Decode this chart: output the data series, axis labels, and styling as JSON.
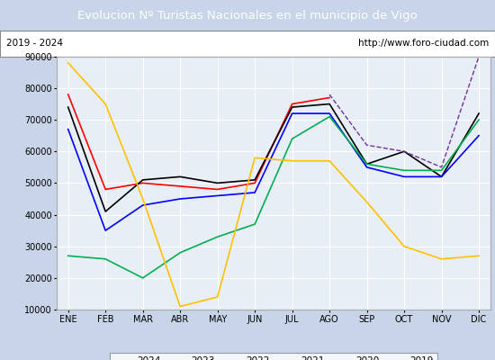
{
  "title": "Evolucion Nº Turistas Nacionales en el municipio de Vigo",
  "subtitle_left": "2019 - 2024",
  "subtitle_right": "http://www.foro-ciudad.com",
  "title_bg_color": "#4472c4",
  "title_text_color": "#ffffff",
  "outer_bg_color": "#c8d4e8",
  "plot_bg_color": "#e8eef5",
  "months": [
    "ENE",
    "FEB",
    "MAR",
    "ABR",
    "MAY",
    "JUN",
    "JUL",
    "AGO",
    "SEP",
    "OCT",
    "NOV",
    "DIC"
  ],
  "ylim": [
    10000,
    90000
  ],
  "yticks": [
    10000,
    20000,
    30000,
    40000,
    50000,
    60000,
    70000,
    80000,
    90000
  ],
  "series": {
    "2024": {
      "color": "#ff0000",
      "data": [
        78000,
        48000,
        50000,
        49000,
        48000,
        50000,
        75000,
        77000,
        null,
        null,
        null,
        null
      ]
    },
    "2023": {
      "color": "#000000",
      "data": [
        74000,
        41000,
        51000,
        52000,
        50000,
        51000,
        74000,
        75000,
        56000,
        60000,
        52000,
        72000
      ]
    },
    "2022": {
      "color": "#0000ff",
      "data": [
        67000,
        35000,
        43000,
        45000,
        46000,
        47000,
        72000,
        72000,
        55000,
        52000,
        52000,
        65000
      ]
    },
    "2021": {
      "color": "#00b050",
      "data": [
        27000,
        26000,
        20000,
        28000,
        33000,
        37000,
        64000,
        71000,
        56000,
        54000,
        54000,
        70000
      ]
    },
    "2020": {
      "color": "#ffc000",
      "data": [
        88000,
        75000,
        45000,
        11000,
        14000,
        58000,
        57000,
        57000,
        44000,
        30000,
        26000,
        27000
      ]
    },
    "2019": {
      "color": "#7030a0",
      "data": [
        null,
        null,
        null,
        null,
        null,
        null,
        null,
        78000,
        62000,
        60000,
        55000,
        90000
      ]
    }
  }
}
